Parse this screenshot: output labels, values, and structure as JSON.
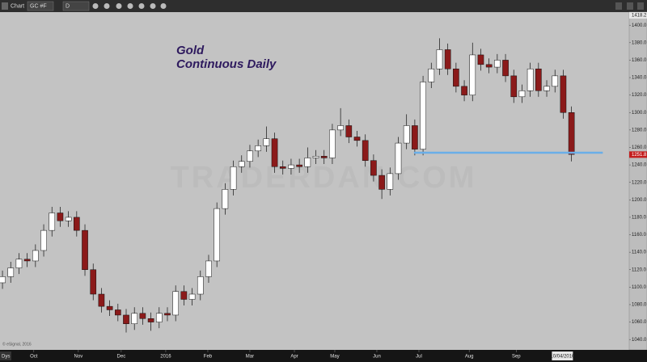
{
  "toolbar": {
    "window_title": "Chart",
    "symbol": "GC #F",
    "interval": "D",
    "period_button": "Dys"
  },
  "chart_data": {
    "type": "candlestick",
    "title": "Gold",
    "subtitle": "Continuous Daily",
    "watermark": "TRADERDAN.COM",
    "copyright": "© eSignal, 2016",
    "open": [
      1105,
      1112,
      1122,
      1132,
      1130,
      1142,
      1165,
      1185,
      1176,
      1180,
      1165,
      1120,
      1092,
      1078,
      1074,
      1068,
      1058,
      1070,
      1064,
      1060,
      1070,
      1068,
      1095,
      1086,
      1092,
      1112,
      1130,
      1190,
      1212,
      1238,
      1244,
      1256,
      1262,
      1270,
      1238,
      1236,
      1240,
      1238,
      1248,
      1250,
      1248,
      1280,
      1285,
      1272,
      1268,
      1245,
      1228,
      1212,
      1230,
      1265,
      1285,
      1258,
      1335,
      1350,
      1372,
      1350,
      1330,
      1320,
      1366,
      1355,
      1352,
      1360,
      1342,
      1318,
      1325,
      1350,
      1325,
      1330,
      1342,
      1300
    ],
    "high": [
      1119,
      1129,
      1139,
      1139,
      1149,
      1172,
      1192,
      1192,
      1187,
      1187,
      1172,
      1127,
      1099,
      1085,
      1081,
      1075,
      1077,
      1077,
      1071,
      1077,
      1077,
      1102,
      1102,
      1099,
      1119,
      1137,
      1197,
      1219,
      1245,
      1251,
      1263,
      1269,
      1284,
      1277,
      1245,
      1247,
      1247,
      1260,
      1257,
      1257,
      1287,
      1305,
      1292,
      1279,
      1275,
      1252,
      1235,
      1237,
      1272,
      1298,
      1292,
      1342,
      1357,
      1385,
      1379,
      1357,
      1337,
      1380,
      1373,
      1362,
      1367,
      1367,
      1349,
      1332,
      1357,
      1357,
      1337,
      1349,
      1349,
      1307
    ],
    "low": [
      1098,
      1105,
      1115,
      1123,
      1123,
      1135,
      1158,
      1169,
      1169,
      1158,
      1113,
      1085,
      1071,
      1067,
      1061,
      1048,
      1051,
      1057,
      1050,
      1053,
      1061,
      1061,
      1079,
      1079,
      1085,
      1105,
      1123,
      1183,
      1205,
      1231,
      1237,
      1249,
      1255,
      1231,
      1229,
      1229,
      1231,
      1231,
      1241,
      1241,
      1241,
      1273,
      1265,
      1261,
      1238,
      1221,
      1201,
      1205,
      1223,
      1258,
      1251,
      1251,
      1328,
      1343,
      1343,
      1323,
      1313,
      1313,
      1348,
      1345,
      1345,
      1335,
      1311,
      1311,
      1318,
      1318,
      1318,
      1323,
      1293,
      1244
    ],
    "close": [
      1112,
      1122,
      1132,
      1130,
      1142,
      1165,
      1185,
      1176,
      1180,
      1165,
      1120,
      1092,
      1078,
      1074,
      1068,
      1058,
      1070,
      1064,
      1060,
      1070,
      1068,
      1095,
      1086,
      1092,
      1112,
      1130,
      1190,
      1212,
      1238,
      1244,
      1256,
      1262,
      1270,
      1238,
      1236,
      1240,
      1238,
      1248,
      1250,
      1248,
      1280,
      1285,
      1272,
      1268,
      1245,
      1228,
      1212,
      1230,
      1265,
      1285,
      1258,
      1335,
      1350,
      1372,
      1350,
      1330,
      1320,
      1366,
      1355,
      1352,
      1360,
      1342,
      1318,
      1325,
      1350,
      1325,
      1330,
      1342,
      1300,
      1252
    ],
    "up_color": "#ffffff",
    "down_color": "#8b1a1a",
    "support_line": {
      "value": 1254,
      "x": [
        49.9,
        72.8
      ],
      "color": "#6aaee8"
    },
    "last_price": 1251.8,
    "axis_top_price": 1418.2,
    "cursor_date": {
      "value": 67.9,
      "label": "10/04/2016"
    },
    "xlim": [
      -0.3,
      76
    ],
    "xticks": [
      {
        "value": 3.8,
        "label": "Oct"
      },
      {
        "value": 9.2,
        "label": "Nov"
      },
      {
        "value": 14.4,
        "label": "Dec"
      },
      2016,
      {
        "value": 24.9,
        "label": "Feb"
      },
      {
        "value": 30,
        "label": "Mar"
      },
      {
        "value": 35.4,
        "label": "Apr"
      },
      {
        "value": 40.3,
        "label": "May"
      },
      {
        "value": 45.4,
        "label": "Jun"
      },
      {
        "value": 50.5,
        "label": "Jul"
      },
      {
        "value": 56.6,
        "label": "Aug"
      },
      {
        "value": 62.3,
        "label": "Sep"
      }
    ],
    "xtick_2016_position": 19.8,
    "ylim": [
      1030,
      1415
    ],
    "yticks": [
      {
        "value": 1040,
        "label": "1040.0"
      },
      {
        "value": 1060,
        "label": "1060.0"
      },
      {
        "value": 1080,
        "label": "1080.0"
      },
      {
        "value": 1100,
        "label": "1100.0"
      },
      {
        "value": 1120,
        "label": "1120.0"
      },
      {
        "value": 1140,
        "label": "1140.0"
      },
      {
        "value": 1160,
        "label": "1160.0"
      },
      {
        "value": 1180,
        "label": "1180.0"
      },
      {
        "value": 1200,
        "label": "1200.0"
      },
      {
        "value": 1220,
        "label": "1220.0"
      },
      {
        "value": 1240,
        "label": "1240.0"
      },
      {
        "value": 1260,
        "label": "1260.0"
      },
      {
        "value": 1280,
        "label": "1280.0"
      },
      {
        "value": 1300,
        "label": "1300.0"
      },
      {
        "value": 1320,
        "label": "1320.0"
      },
      {
        "value": 1340,
        "label": "1340.0"
      },
      {
        "value": 1360,
        "label": "1360.0"
      },
      {
        "value": 1380,
        "label": "1380.0"
      },
      {
        "value": 1400,
        "label": "1400.0"
      }
    ]
  }
}
